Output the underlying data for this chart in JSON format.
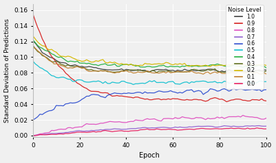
{
  "xlabel": "Epoch",
  "ylabel": "Standard Deviation of Predictions",
  "xlim": [
    0,
    100
  ],
  "ylim": [
    -0.002,
    0.168
  ],
  "yticks": [
    0.0,
    0.02,
    0.04,
    0.06,
    0.08,
    0.1,
    0.12,
    0.14,
    0.16
  ],
  "xticks": [
    0,
    20,
    40,
    60,
    80,
    100
  ],
  "noise_levels": [
    "1.0",
    "0.9",
    "0.8",
    "0.7",
    "0.6",
    "0.5",
    "0.4",
    "0.3",
    "0.2",
    "0.1",
    "0.0"
  ],
  "colors": {
    "1.0": "#404040",
    "0.9": "#d62020",
    "0.8": "#e050c0",
    "0.7": "#9060d0",
    "0.6": "#3050d0",
    "0.5": "#10c0d0",
    "0.4": "#20b040",
    "0.3": "#607020",
    "0.2": "#d4b800",
    "0.1": "#c08030",
    "0.0": "#e82060"
  },
  "background_color": "#f0f0f0",
  "legend_title": "Noise Level",
  "n_epochs": 101
}
